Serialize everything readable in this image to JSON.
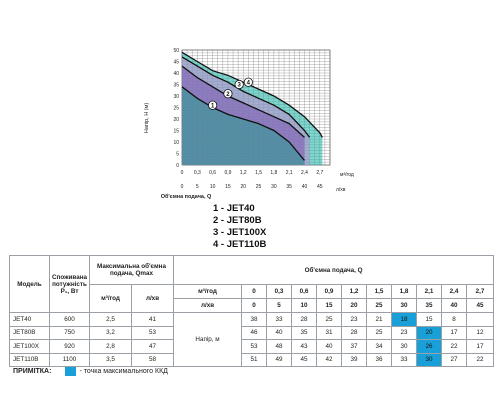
{
  "chart_data": {
    "type": "area",
    "ylabel": "Напір, Н (м)",
    "xlabel": "Об'ємна подача, Q",
    "x_units_top": "м³/год",
    "x_units_bottom": "л/хв",
    "x_ticks_top": [
      "0",
      "0,3",
      "0,6",
      "0,9",
      "1,2",
      "1,5",
      "1,8",
      "2,1",
      "2,4",
      "2,7"
    ],
    "x_ticks_bottom": [
      "0",
      "5",
      "10",
      "15",
      "20",
      "25",
      "30",
      "35",
      "40",
      "45"
    ],
    "y_ticks": [
      "0",
      "5",
      "10",
      "15",
      "20",
      "25",
      "30",
      "35",
      "40",
      "45",
      "50"
    ],
    "xlim": [
      0,
      2.9
    ],
    "ylim": [
      0,
      50
    ],
    "grid": true,
    "series": [
      {
        "name": "1",
        "x": [
          0,
          0.3,
          0.6,
          0.9,
          1.2,
          1.5,
          1.8,
          2.1,
          2.4
        ],
        "y": [
          34,
          29,
          25,
          22,
          20,
          18,
          15,
          10,
          2
        ],
        "color": "#2a9d8f"
      },
      {
        "name": "2",
        "x": [
          0,
          0.3,
          0.6,
          0.9,
          1.2,
          1.5,
          1.8,
          2.1,
          2.4
        ],
        "y": [
          43,
          38,
          34,
          30,
          27,
          24,
          21,
          18,
          12
        ],
        "color": "#7a58b0"
      },
      {
        "name": "3",
        "x": [
          0,
          0.3,
          0.6,
          0.9,
          1.2,
          1.5,
          1.8,
          2.1,
          2.4,
          2.5
        ],
        "y": [
          47,
          43,
          39,
          36,
          32,
          29,
          26,
          22,
          15,
          12
        ],
        "color": "#c18ad0"
      },
      {
        "name": "4",
        "x": [
          0,
          0.3,
          0.6,
          0.9,
          1.2,
          1.5,
          1.8,
          2.1,
          2.4,
          2.7,
          2.75
        ],
        "y": [
          49,
          45,
          41,
          39,
          36,
          33,
          30,
          26,
          21,
          14,
          12
        ],
        "color": "#19b3a6"
      }
    ],
    "curve_labels": [
      {
        "text": "1",
        "x": 0.6,
        "y": 26
      },
      {
        "text": "2",
        "x": 0.9,
        "y": 31
      },
      {
        "text": "3",
        "x": 1.12,
        "y": 35
      },
      {
        "text": "4",
        "x": 1.3,
        "y": 36
      }
    ]
  },
  "colors": {
    "highlight": "#1aa0d8"
  },
  "legend": {
    "items": [
      "1 - JET40",
      "2 - JET80B",
      "3 - JET100X",
      "4 - JET110B"
    ]
  },
  "table": {
    "model_header": "Модель",
    "power_header": "Споживана потужність P₁, Вт",
    "qmax_header": "Максимальна об'ємна подача, Qmax",
    "qmax_unit_m3h": "м³/год",
    "qmax_unit_lmin": "л/хв",
    "flow_header": "Об'ємна подача, Q",
    "unit_m3h": "м³/год",
    "unit_lmin": "л/хв",
    "head_label": "Напір, м",
    "flows_m3h": [
      "0",
      "0,3",
      "0,6",
      "0,9",
      "1,2",
      "1,5",
      "1,8",
      "2,1",
      "2,4",
      "2,7"
    ],
    "flows_lmin": [
      "0",
      "5",
      "10",
      "15",
      "20",
      "25",
      "30",
      "35",
      "40",
      "45"
    ],
    "rows": [
      {
        "model": "JET40",
        "power": "600",
        "q_m3h": "2,5",
        "q_lmin": "41",
        "heads": [
          "38",
          "33",
          "28",
          "25",
          "23",
          "21",
          "18",
          "15",
          "8",
          ""
        ],
        "hi": 6
      },
      {
        "model": "JET80B",
        "power": "750",
        "q_m3h": "3,2",
        "q_lmin": "53",
        "heads": [
          "46",
          "40",
          "35",
          "31",
          "28",
          "25",
          "23",
          "20",
          "17",
          "12"
        ],
        "hi": 7
      },
      {
        "model": "JET100X",
        "power": "920",
        "q_m3h": "2,8",
        "q_lmin": "47",
        "heads": [
          "53",
          "48",
          "43",
          "40",
          "37",
          "34",
          "30",
          "26",
          "22",
          "17"
        ],
        "hi": 7
      },
      {
        "model": "JET110B",
        "power": "1100",
        "q_m3h": "3,5",
        "q_lmin": "58",
        "heads": [
          "51",
          "49",
          "45",
          "42",
          "39",
          "36",
          "33",
          "30",
          "27",
          "22"
        ],
        "hi": 7
      }
    ]
  },
  "note": {
    "label": "ПРИМІТКА:",
    "text": "- точка максимального ККД"
  }
}
